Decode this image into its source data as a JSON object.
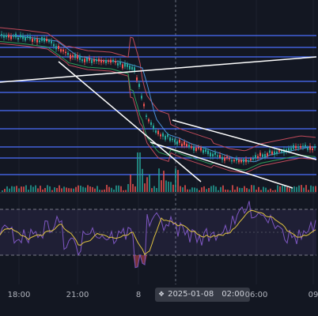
{
  "time_axis": {
    "ticks": [
      {
        "label": "18:00"
      },
      {
        "label": "21:00"
      },
      {
        "label": "8"
      },
      {
        "label": "06:00"
      },
      {
        "label": "09"
      }
    ],
    "crosshair_date": "2025-01-08",
    "crosshair_time": "02:00"
  },
  "chart_data": {
    "type": "candlestick",
    "x_labels": [
      "18:00",
      "21:00",
      "8",
      "06:00",
      "09"
    ],
    "price_pane": {
      "horizontal_levels": 12,
      "bollinger_bands": true,
      "trendlines": 4
    },
    "rsi_pane": {
      "band_shaded": true
    },
    "colors": {
      "background": "#131722",
      "up": "#26a69a",
      "down": "#ef5350",
      "level": "#4c6fff",
      "band_upper_lower": "#c04a5a",
      "band_middle": "#4a90d9",
      "band_lower_inner": "#2e9e5a",
      "trendline": "#ffffff",
      "rsi_line": "#7e57c2",
      "rsi_ma": "#e0c340"
    }
  }
}
